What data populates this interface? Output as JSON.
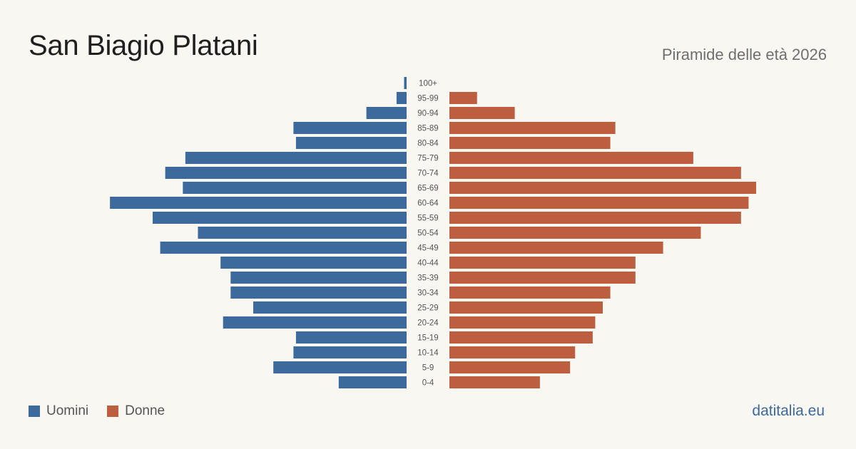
{
  "header": {
    "title": "San Biagio Platani",
    "subtitle": "Piramide delle età 2026"
  },
  "colors": {
    "men": "#3d6a9c",
    "women": "#bd5f3f",
    "background": "#f9f7f2"
  },
  "legend": {
    "men_label": "Uomini",
    "women_label": "Donne"
  },
  "brand": "datitalia.eu",
  "chart_data": {
    "type": "bar",
    "orientation": "horizontal-pyramid",
    "categories": [
      "100+",
      "95-99",
      "90-94",
      "85-89",
      "80-84",
      "75-79",
      "70-74",
      "65-69",
      "60-64",
      "55-59",
      "50-54",
      "45-49",
      "40-44",
      "35-39",
      "30-34",
      "25-29",
      "20-24",
      "15-19",
      "10-14",
      "5-9",
      "0-4"
    ],
    "series": [
      {
        "name": "Uomini",
        "values": [
          1,
          4,
          16,
          45,
          44,
          88,
          96,
          89,
          118,
          101,
          83,
          98,
          74,
          70,
          70,
          61,
          73,
          44,
          45,
          53,
          27
        ]
      },
      {
        "name": "Donne",
        "values": [
          0,
          11,
          26,
          66,
          64,
          97,
          116,
          122,
          119,
          116,
          100,
          85,
          74,
          74,
          64,
          61,
          58,
          57,
          50,
          48,
          36
        ]
      }
    ],
    "max_value": 122,
    "grid": false,
    "legend_position": "bottom-left"
  }
}
